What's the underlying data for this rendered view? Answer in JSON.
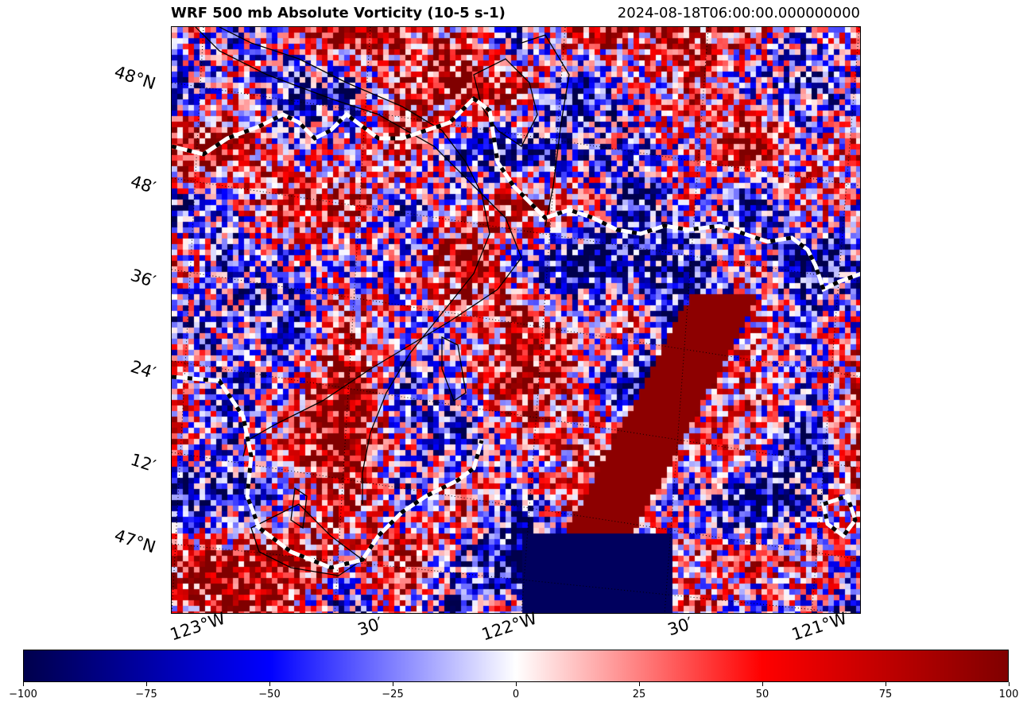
{
  "title": "WRF 500 mb Absolute Vorticity (10-5 s-1)",
  "valid_time": "2024-08-18T06:00:00.000000000",
  "map": {
    "lat_labels": [
      "48°N",
      "48′",
      "36′",
      "24′",
      "12′",
      "47°N"
    ],
    "lon_labels": [
      "123°W",
      "30′",
      "122°W",
      "30′",
      "121°W"
    ],
    "field": "absolute_vorticity_500mb",
    "colormap": "seismic",
    "overlays": [
      "coastline (black)",
      "vorticity contour (white/black dashed)"
    ]
  },
  "colorbar": {
    "min": -100,
    "max": 100,
    "ticks": [
      "−100",
      "−75",
      "−50",
      "−25",
      "0",
      "25",
      "50",
      "75",
      "100"
    ],
    "colors": [
      "#00004c",
      "#0000ff",
      "#ffffff",
      "#ff0000",
      "#800000"
    ]
  }
}
